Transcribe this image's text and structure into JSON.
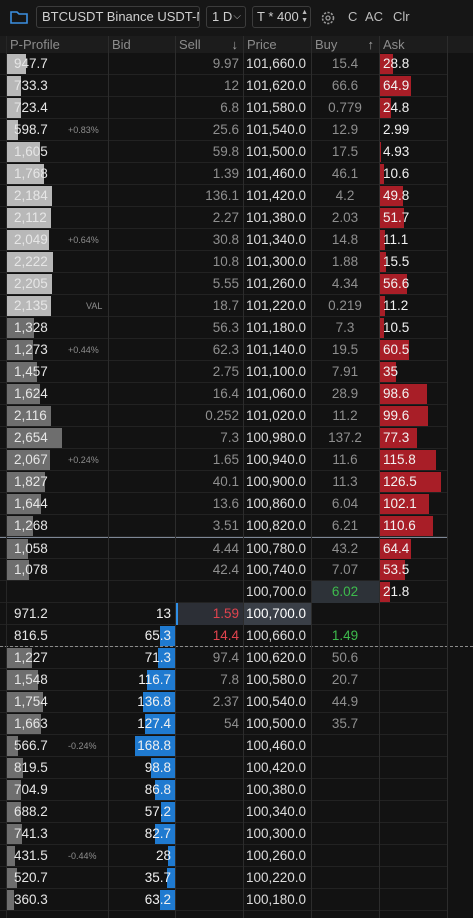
{
  "toolbar": {
    "symbol": "BTCUSDT Binance USDT-M",
    "timeframe": "1 D",
    "tick": "T * 400",
    "btn_c": "C",
    "btn_ac": "AC",
    "btn_clr": "Clr"
  },
  "columns": [
    "P-Profile",
    "Bid",
    "Sell",
    "Price",
    "Buy",
    "Ask"
  ],
  "sort_icons": {
    "sell": "↓",
    "buy": "↑"
  },
  "colors": {
    "profile_bar": "#6e6e6e",
    "profile_bar_light": "#b8b8b8",
    "bid_bar": "#1f7ad0",
    "ask_bar": "#a81e27",
    "sell_hit": "#e0434e",
    "buy_hit": "#3dbb4c",
    "last_price_bg": "#3a3f47"
  },
  "rows": [
    {
      "profile": "947.7",
      "pct": 0.35,
      "light": true,
      "marker": "",
      "bid": "",
      "bidPct": 0,
      "sell": "9.97",
      "price": "101,660.0",
      "buy": "15.4",
      "ask": "28.8",
      "askPct": 0.23
    },
    {
      "profile": "733.3",
      "pct": 0.27,
      "light": true,
      "marker": "",
      "bid": "",
      "bidPct": 0,
      "sell": "12",
      "price": "101,620.0",
      "buy": "66.6",
      "ask": "64.9",
      "askPct": 0.51
    },
    {
      "profile": "723.4",
      "pct": 0.27,
      "light": true,
      "marker": "",
      "bid": "",
      "bidPct": 0,
      "sell": "6.8",
      "price": "101,580.0",
      "buy": "0.779",
      "ask": "24.8",
      "askPct": 0.2
    },
    {
      "profile": "598.7",
      "pct": 0.22,
      "light": true,
      "marker": "+0.83%",
      "bid": "",
      "bidPct": 0,
      "sell": "25.6",
      "price": "101,540.0",
      "buy": "12.9",
      "ask": "2.99",
      "askPct": 0.02
    },
    {
      "profile": "1,605",
      "pct": 0.6,
      "light": true,
      "marker": "",
      "bid": "",
      "bidPct": 0,
      "sell": "59.8",
      "price": "101,500.0",
      "buy": "17.5",
      "ask": "4.93",
      "askPct": 0.04
    },
    {
      "profile": "1,768",
      "pct": 0.67,
      "light": true,
      "marker": "",
      "bid": "",
      "bidPct": 0,
      "sell": "1.39",
      "price": "101,460.0",
      "buy": "46.1",
      "ask": "10.6",
      "askPct": 0.08
    },
    {
      "profile": "2,184",
      "pct": 0.82,
      "light": true,
      "marker": "",
      "bid": "",
      "bidPct": 0,
      "sell": "136.1",
      "price": "101,420.0",
      "buy": "4.2",
      "ask": "49.8",
      "askPct": 0.39
    },
    {
      "profile": "2,112",
      "pct": 0.8,
      "light": true,
      "marker": "",
      "bid": "",
      "bidPct": 0,
      "sell": "2.27",
      "price": "101,380.0",
      "buy": "2.03",
      "ask": "51.7",
      "askPct": 0.41
    },
    {
      "profile": "2,049",
      "pct": 0.77,
      "light": true,
      "marker": "+0.64%",
      "bid": "",
      "bidPct": 0,
      "sell": "30.8",
      "price": "101,340.0",
      "buy": "14.8",
      "ask": "11.1",
      "askPct": 0.09
    },
    {
      "profile": "2,222",
      "pct": 0.84,
      "light": true,
      "marker": "",
      "bid": "",
      "bidPct": 0,
      "sell": "10.8",
      "price": "101,300.0",
      "buy": "1.88",
      "ask": "15.5",
      "askPct": 0.12
    },
    {
      "profile": "2,205",
      "pct": 0.83,
      "light": true,
      "marker": "",
      "bid": "",
      "bidPct": 0,
      "sell": "5.55",
      "price": "101,260.0",
      "buy": "4.34",
      "ask": "56.6",
      "askPct": 0.45
    },
    {
      "profile": "2,135",
      "pct": 0.8,
      "light": true,
      "marker": "VAL",
      "bid": "",
      "bidPct": 0,
      "sell": "18.7",
      "price": "101,220.0",
      "buy": "0.219",
      "ask": "11.2",
      "askPct": 0.09
    },
    {
      "profile": "1,328",
      "pct": 0.5,
      "light": false,
      "marker": "",
      "bid": "",
      "bidPct": 0,
      "sell": "56.3",
      "price": "101,180.0",
      "buy": "7.3",
      "ask": "10.5",
      "askPct": 0.08
    },
    {
      "profile": "1,273",
      "pct": 0.48,
      "light": false,
      "marker": "+0.44%",
      "bid": "",
      "bidPct": 0,
      "sell": "62.3",
      "price": "101,140.0",
      "buy": "19.5",
      "ask": "60.5",
      "askPct": 0.48
    },
    {
      "profile": "1,457",
      "pct": 0.55,
      "light": false,
      "marker": "",
      "bid": "",
      "bidPct": 0,
      "sell": "2.75",
      "price": "101,100.0",
      "buy": "7.91",
      "ask": "35",
      "askPct": 0.28
    },
    {
      "profile": "1,624",
      "pct": 0.61,
      "light": false,
      "marker": "",
      "bid": "",
      "bidPct": 0,
      "sell": "16.4",
      "price": "101,060.0",
      "buy": "28.9",
      "ask": "98.6",
      "askPct": 0.78
    },
    {
      "profile": "2,116",
      "pct": 0.8,
      "light": false,
      "marker": "",
      "bid": "",
      "bidPct": 0,
      "sell": "0.252",
      "price": "101,020.0",
      "buy": "11.2",
      "ask": "99.6",
      "askPct": 0.79
    },
    {
      "profile": "2,654",
      "pct": 1.0,
      "light": false,
      "marker": "",
      "bid": "",
      "bidPct": 0,
      "sell": "7.3",
      "price": "100,980.0",
      "buy": "137.2",
      "ask": "77.3",
      "askPct": 0.61
    },
    {
      "profile": "2,067",
      "pct": 0.78,
      "light": false,
      "marker": "+0.24%",
      "bid": "",
      "bidPct": 0,
      "sell": "1.65",
      "price": "100,940.0",
      "buy": "11.6",
      "ask": "115.8",
      "askPct": 0.92
    },
    {
      "profile": "1,827",
      "pct": 0.69,
      "light": false,
      "marker": "",
      "bid": "",
      "bidPct": 0,
      "sell": "40.1",
      "price": "100,900.0",
      "buy": "11.3",
      "ask": "126.5",
      "askPct": 1.0
    },
    {
      "profile": "1,644",
      "pct": 0.62,
      "light": false,
      "marker": "",
      "bid": "",
      "bidPct": 0,
      "sell": "13.6",
      "price": "100,860.0",
      "buy": "6.04",
      "ask": "102.1",
      "askPct": 0.81
    },
    {
      "profile": "1,268",
      "pct": 0.48,
      "light": false,
      "marker": "",
      "bid": "",
      "bidPct": 0,
      "sell": "3.51",
      "price": "100,820.0",
      "buy": "6.21",
      "ask": "110.6",
      "askPct": 0.87
    },
    {
      "profile": "1,058",
      "pct": 0.4,
      "light": false,
      "marker": "",
      "bid": "",
      "bidPct": 0,
      "sell": "4.44",
      "price": "100,780.0",
      "buy": "43.2",
      "ask": "64.4",
      "askPct": 0.51,
      "sepTop": true
    },
    {
      "profile": "1,078",
      "pct": 0.41,
      "light": false,
      "marker": "",
      "bid": "",
      "bidPct": 0,
      "sell": "42.4",
      "price": "100,740.0",
      "buy": "7.07",
      "ask": "53.5",
      "askPct": 0.42
    },
    {
      "profile": "",
      "pct": 0,
      "light": false,
      "marker": "",
      "bid": "",
      "bidPct": 0,
      "sell": "",
      "price": "100,700.0",
      "buy": "6.02",
      "buyHit": true,
      "ask": "21.8",
      "askPct": 0.17
    },
    {
      "profile": "971.2",
      "pct": 0.0,
      "light": false,
      "marker": "",
      "bid": "13",
      "bidPct": 0.0,
      "sell": "1.59",
      "sellHit": true,
      "price": "100,700.0",
      "priceHL": true,
      "buy": "",
      "ask": "",
      "askPct": 0
    },
    {
      "profile": "816.5",
      "pct": 0.0,
      "light": false,
      "marker": "",
      "bid": "65.3",
      "bidPct": 0.38,
      "sell": "14.4",
      "sellRed": true,
      "price": "100,660.0",
      "buy": "1.49",
      "buyGreen": true,
      "ask": "",
      "askPct": 0,
      "dashBottom": true
    },
    {
      "profile": "1,227",
      "pct": 0.46,
      "light": false,
      "marker": "",
      "bid": "71.3",
      "bidPct": 0.42,
      "sell": "97.4",
      "price": "100,620.0",
      "buy": "50.6",
      "ask": "",
      "askPct": 0
    },
    {
      "profile": "1,548",
      "pct": 0.58,
      "light": false,
      "marker": "",
      "bid": "116.7",
      "bidPct": 0.69,
      "sell": "7.8",
      "price": "100,580.0",
      "buy": "20.7",
      "ask": "",
      "askPct": 0
    },
    {
      "profile": "1,754",
      "pct": 0.66,
      "light": false,
      "marker": "",
      "bid": "136.8",
      "bidPct": 0.81,
      "sell": "2.37",
      "price": "100,540.0",
      "buy": "44.9",
      "ask": "",
      "askPct": 0
    },
    {
      "profile": "1,663",
      "pct": 0.63,
      "light": false,
      "marker": "",
      "bid": "127.4",
      "bidPct": 0.75,
      "sell": "54",
      "price": "100,500.0",
      "buy": "35.7",
      "ask": "",
      "askPct": 0
    },
    {
      "profile": "566.7",
      "pct": 0.21,
      "light": false,
      "marker": "-0.24%",
      "bid": "168.8",
      "bidPct": 1.0,
      "sell": "",
      "price": "100,460.0",
      "buy": "",
      "ask": "",
      "askPct": 0
    },
    {
      "profile": "819.5",
      "pct": 0.31,
      "light": false,
      "marker": "",
      "bid": "98.8",
      "bidPct": 0.59,
      "sell": "",
      "price": "100,420.0",
      "buy": "",
      "ask": "",
      "askPct": 0
    },
    {
      "profile": "704.9",
      "pct": 0.27,
      "light": false,
      "marker": "",
      "bid": "86.8",
      "bidPct": 0.51,
      "sell": "",
      "price": "100,380.0",
      "buy": "",
      "ask": "",
      "askPct": 0
    },
    {
      "profile": "688.2",
      "pct": 0.26,
      "light": false,
      "marker": "",
      "bid": "57.2",
      "bidPct": 0.34,
      "sell": "",
      "price": "100,340.0",
      "buy": "",
      "ask": "",
      "askPct": 0
    },
    {
      "profile": "741.3",
      "pct": 0.28,
      "light": false,
      "marker": "",
      "bid": "82.7",
      "bidPct": 0.49,
      "sell": "",
      "price": "100,300.0",
      "buy": "",
      "ask": "",
      "askPct": 0
    },
    {
      "profile": "431.5",
      "pct": 0.16,
      "light": false,
      "marker": "-0.44%",
      "bid": "28",
      "bidPct": 0.17,
      "sell": "",
      "price": "100,260.0",
      "buy": "",
      "ask": "",
      "askPct": 0
    },
    {
      "profile": "520.7",
      "pct": 0.2,
      "light": false,
      "marker": "",
      "bid": "35.7",
      "bidPct": 0.21,
      "sell": "",
      "price": "100,220.0",
      "buy": "",
      "ask": "",
      "askPct": 0
    },
    {
      "profile": "360.3",
      "pct": 0.14,
      "light": false,
      "marker": "",
      "bid": "63.2",
      "bidPct": 0.37,
      "sell": "",
      "price": "100,180.0",
      "buy": "",
      "ask": "",
      "askPct": 0
    }
  ]
}
